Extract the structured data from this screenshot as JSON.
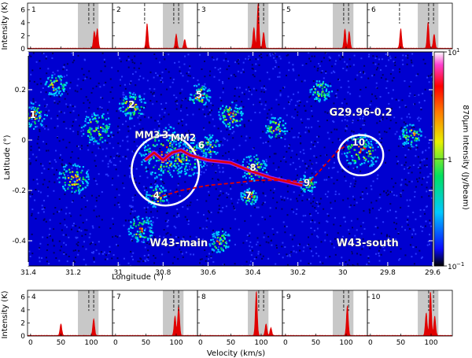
{
  "chart_data": [
    {
      "type": "heatmap",
      "name": "map",
      "xlabel": "Longitude (°)",
      "ylabel": "Latitude (°)",
      "xlim": [
        31.4,
        29.6
      ],
      "ylim": [
        -0.5,
        0.35
      ],
      "x_ticks": [
        "31.4",
        "31.2",
        "31",
        "30.8",
        "30.6",
        "30.4",
        "30.2",
        "30",
        "29.8",
        "29.6"
      ],
      "y_ticks": [
        "0.2",
        "0",
        "-0.2",
        "-0.4"
      ],
      "colorbar": {
        "label": "870μm Intensity (Jy/beam)",
        "scale": "log",
        "range": [
          0.1,
          10
        ],
        "tick_labels": [
          "10",
          "1",
          "10"
        ],
        "tick_exponents": [
          "1",
          "",
          "−1"
        ]
      },
      "numbered_sources": [
        {
          "label": "1",
          "lon": 31.38,
          "lat": 0.1
        },
        {
          "label": "2",
          "lon": 30.94,
          "lat": 0.14
        },
        {
          "label": "3",
          "lon": 30.79,
          "lat": 0.02
        },
        {
          "label": "4",
          "lon": 30.83,
          "lat": -0.22
        },
        {
          "label": "5",
          "lon": 30.64,
          "lat": 0.18
        },
        {
          "label": "6",
          "lon": 30.63,
          "lat": -0.02
        },
        {
          "label": "7",
          "lon": 30.42,
          "lat": -0.22
        },
        {
          "label": "8",
          "lon": 30.4,
          "lat": -0.11
        },
        {
          "label": "9",
          "lon": 30.16,
          "lat": -0.17
        },
        {
          "label": "10",
          "lon": 29.93,
          "lat": -0.01
        }
      ],
      "named_sources": [
        {
          "label": "MM3",
          "lon": 30.87,
          "lat": 0.02
        },
        {
          "label": "MM2",
          "lon": 30.71,
          "lat": 0.01
        }
      ],
      "regions": [
        {
          "label": "W43-main",
          "lon": 30.73,
          "lat": -0.41
        },
        {
          "label": "W43-south",
          "lon": 29.89,
          "lat": -0.41
        },
        {
          "label": "G29.96-0.2",
          "lon": 29.92,
          "lat": 0.11
        }
      ],
      "circles": [
        {
          "lon": 30.79,
          "lat": -0.12,
          "r_lon": 0.15,
          "r_lat": 0.14
        },
        {
          "lon": 29.92,
          "lat": -0.06,
          "r_lon": 0.1,
          "r_lat": 0.08
        }
      ],
      "ridge_path": [
        [
          30.88,
          -0.08
        ],
        [
          30.84,
          -0.05
        ],
        [
          30.8,
          -0.08
        ],
        [
          30.76,
          -0.05
        ],
        [
          30.72,
          -0.04
        ],
        [
          30.68,
          -0.06
        ],
        [
          30.6,
          -0.08
        ],
        [
          30.5,
          -0.09
        ],
        [
          30.42,
          -0.12
        ],
        [
          30.32,
          -0.15
        ],
        [
          30.18,
          -0.18
        ]
      ],
      "dashed_path": [
        [
          30.83,
          -0.23
        ],
        [
          30.72,
          -0.2
        ],
        [
          30.6,
          -0.18
        ],
        [
          30.48,
          -0.17
        ],
        [
          30.38,
          -0.16
        ],
        [
          30.24,
          -0.16
        ],
        [
          30.15,
          -0.17
        ],
        [
          30.08,
          -0.1
        ],
        [
          30.02,
          -0.04
        ],
        [
          29.98,
          -0.02
        ]
      ]
    },
    {
      "type": "area",
      "name": "top_spectra",
      "ylabel": "Intensity (K)",
      "xlim": [
        -5,
        135
      ],
      "ylim": [
        0,
        7
      ],
      "y_ticks": [
        "0",
        "2",
        "4",
        "6"
      ],
      "panels": [
        {
          "label": "1",
          "band": [
            78,
            112
          ],
          "marks": [
            96,
            104
          ],
          "peaks": [
            [
              105,
              2.6
            ],
            [
              110,
              3.0
            ]
          ]
        },
        {
          "label": "2",
          "band": [
            78,
            112
          ],
          "marks": [
            48,
            96,
            104
          ],
          "peaks": [
            [
              52,
              3.8
            ],
            [
              100,
              2.2
            ],
            [
              114,
              1.4
            ]
          ]
        },
        {
          "label": "3",
          "band": [
            78,
            112
          ],
          "marks": [
            96,
            104
          ],
          "peaks": [
            [
              88,
              3.2
            ],
            [
              95,
              7.0
            ],
            [
              104,
              2.5
            ]
          ]
        },
        {
          "label": "5",
          "band": [
            78,
            112
          ],
          "marks": [
            96,
            104
          ],
          "peaks": [
            [
              98,
              3.0
            ],
            [
              105,
              2.6
            ]
          ]
        },
        {
          "label": "6",
          "band": [
            78,
            112
          ],
          "marks": [
            48,
            96,
            104
          ],
          "peaks": [
            [
              50,
              3.0
            ],
            [
              95,
              4.0
            ],
            [
              105,
              2.2
            ]
          ]
        }
      ]
    },
    {
      "type": "area",
      "name": "bottom_spectra",
      "xlabel": "Velocity (km/s)",
      "ylabel": "Intensity (K)",
      "xlim": [
        -5,
        135
      ],
      "ylim": [
        0,
        7
      ],
      "x_ticks": [
        "0",
        "50",
        "100"
      ],
      "y_ticks": [
        "0",
        "2",
        "4",
        "6"
      ],
      "panels": [
        {
          "label": "4",
          "band": [
            78,
            112
          ],
          "marks": [
            96,
            104
          ],
          "peaks": [
            [
              50,
              1.8
            ],
            [
              104,
              2.6
            ]
          ]
        },
        {
          "label": "7",
          "band": [
            78,
            112
          ],
          "marks": [
            96,
            104
          ],
          "peaks": [
            [
              98,
              3.0
            ],
            [
              104,
              4.6
            ]
          ]
        },
        {
          "label": "8",
          "band": [
            78,
            112
          ],
          "marks": [
            96,
            104
          ],
          "peaks": [
            [
              92,
              6.8
            ],
            [
              108,
              1.8
            ],
            [
              116,
              1.2
            ]
          ]
        },
        {
          "label": "9",
          "band": [
            78,
            112
          ],
          "marks": [
            96,
            104
          ],
          "peaks": [
            [
              102,
              4.6
            ]
          ]
        },
        {
          "label": "10",
          "band": [
            78,
            112
          ],
          "marks": [
            96,
            104
          ],
          "peaks": [
            [
              92,
              3.5
            ],
            [
              99,
              6.8
            ],
            [
              106,
              3.0
            ]
          ]
        }
      ]
    }
  ]
}
